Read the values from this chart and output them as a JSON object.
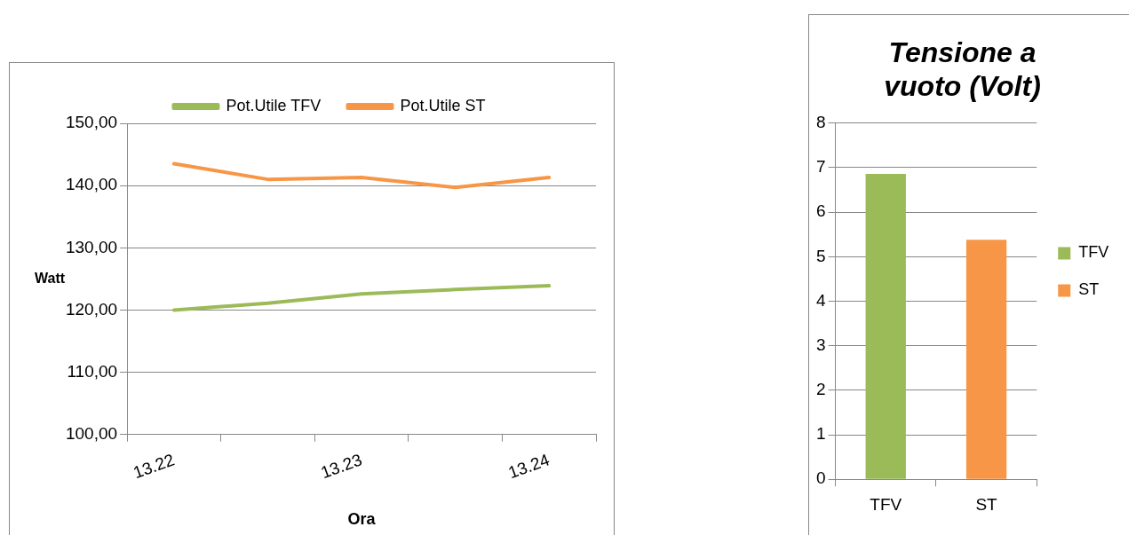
{
  "chart_data": [
    {
      "type": "line",
      "xlabel": "Ora",
      "ylabel": "Watt",
      "categories": [
        "13.22",
        null,
        "13.23",
        null,
        "13.24"
      ],
      "series": [
        {
          "name": "Pot.Utile TFV",
          "color": "#9bbb59",
          "values": [
            120.0,
            121.1,
            122.6,
            123.3,
            123.9
          ]
        },
        {
          "name": "Pot.Utile ST",
          "color": "#f79646",
          "values": [
            143.5,
            141.0,
            141.3,
            139.7,
            141.3
          ]
        }
      ],
      "ylim": [
        100,
        150
      ],
      "yticks": [
        {
          "value": 100,
          "label": "100,00"
        },
        {
          "value": 110,
          "label": "110,00"
        },
        {
          "value": 120,
          "label": "120,00"
        },
        {
          "value": 130,
          "label": "130,00"
        },
        {
          "value": 140,
          "label": "140,00"
        },
        {
          "value": 150,
          "label": "150,00"
        }
      ],
      "grid": "y",
      "legend": "top",
      "marker": "none",
      "line_style": "solid"
    },
    {
      "type": "bar",
      "title": "Tensione a vuoto (Volt)",
      "categories": [
        "TFV",
        "ST"
      ],
      "series": [
        {
          "name": "TFV",
          "color": "#9bbb59",
          "values": [
            6.86,
            null
          ]
        },
        {
          "name": "ST",
          "color": "#f79646",
          "values": [
            null,
            5.38
          ]
        }
      ],
      "ylim": [
        0,
        8
      ],
      "yticks": [
        0,
        1,
        2,
        3,
        4,
        5,
        6,
        7,
        8
      ],
      "grid": "y",
      "legend": "right"
    }
  ]
}
